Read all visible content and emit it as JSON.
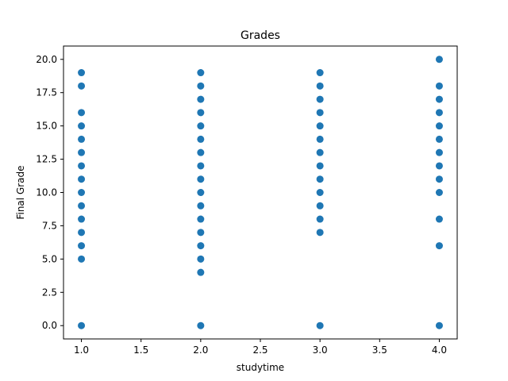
{
  "chart_data": {
    "type": "scatter",
    "title": "Grades",
    "xlabel": "studytime",
    "ylabel": "Final Grade",
    "xlim": [
      0.85,
      4.15
    ],
    "ylim": [
      -1.0,
      21.0
    ],
    "xticks": [
      1.0,
      1.5,
      2.0,
      2.5,
      3.0,
      3.5,
      4.0
    ],
    "xtick_labels": [
      "1.0",
      "1.5",
      "2.0",
      "2.5",
      "3.0",
      "3.5",
      "4.0"
    ],
    "yticks": [
      0.0,
      2.5,
      5.0,
      7.5,
      10.0,
      12.5,
      15.0,
      17.5,
      20.0
    ],
    "ytick_labels": [
      "0.0",
      "2.5",
      "5.0",
      "7.5",
      "10.0",
      "12.5",
      "15.0",
      "17.5",
      "20.0"
    ],
    "grid": false,
    "marker_color": "#1f77b4",
    "points": [
      {
        "x": 1,
        "y": 0
      },
      {
        "x": 1,
        "y": 5
      },
      {
        "x": 1,
        "y": 6
      },
      {
        "x": 1,
        "y": 7
      },
      {
        "x": 1,
        "y": 8
      },
      {
        "x": 1,
        "y": 9
      },
      {
        "x": 1,
        "y": 10
      },
      {
        "x": 1,
        "y": 11
      },
      {
        "x": 1,
        "y": 12
      },
      {
        "x": 1,
        "y": 13
      },
      {
        "x": 1,
        "y": 14
      },
      {
        "x": 1,
        "y": 15
      },
      {
        "x": 1,
        "y": 16
      },
      {
        "x": 1,
        "y": 18
      },
      {
        "x": 1,
        "y": 19
      },
      {
        "x": 2,
        "y": 0
      },
      {
        "x": 2,
        "y": 4
      },
      {
        "x": 2,
        "y": 5
      },
      {
        "x": 2,
        "y": 6
      },
      {
        "x": 2,
        "y": 7
      },
      {
        "x": 2,
        "y": 8
      },
      {
        "x": 2,
        "y": 9
      },
      {
        "x": 2,
        "y": 10
      },
      {
        "x": 2,
        "y": 11
      },
      {
        "x": 2,
        "y": 12
      },
      {
        "x": 2,
        "y": 13
      },
      {
        "x": 2,
        "y": 14
      },
      {
        "x": 2,
        "y": 15
      },
      {
        "x": 2,
        "y": 16
      },
      {
        "x": 2,
        "y": 17
      },
      {
        "x": 2,
        "y": 18
      },
      {
        "x": 2,
        "y": 19
      },
      {
        "x": 3,
        "y": 0
      },
      {
        "x": 3,
        "y": 7
      },
      {
        "x": 3,
        "y": 8
      },
      {
        "x": 3,
        "y": 9
      },
      {
        "x": 3,
        "y": 10
      },
      {
        "x": 3,
        "y": 11
      },
      {
        "x": 3,
        "y": 12
      },
      {
        "x": 3,
        "y": 13
      },
      {
        "x": 3,
        "y": 14
      },
      {
        "x": 3,
        "y": 15
      },
      {
        "x": 3,
        "y": 16
      },
      {
        "x": 3,
        "y": 17
      },
      {
        "x": 3,
        "y": 18
      },
      {
        "x": 3,
        "y": 19
      },
      {
        "x": 4,
        "y": 0
      },
      {
        "x": 4,
        "y": 6
      },
      {
        "x": 4,
        "y": 8
      },
      {
        "x": 4,
        "y": 10
      },
      {
        "x": 4,
        "y": 11
      },
      {
        "x": 4,
        "y": 12
      },
      {
        "x": 4,
        "y": 13
      },
      {
        "x": 4,
        "y": 14
      },
      {
        "x": 4,
        "y": 15
      },
      {
        "x": 4,
        "y": 16
      },
      {
        "x": 4,
        "y": 17
      },
      {
        "x": 4,
        "y": 18
      },
      {
        "x": 4,
        "y": 20
      }
    ]
  }
}
